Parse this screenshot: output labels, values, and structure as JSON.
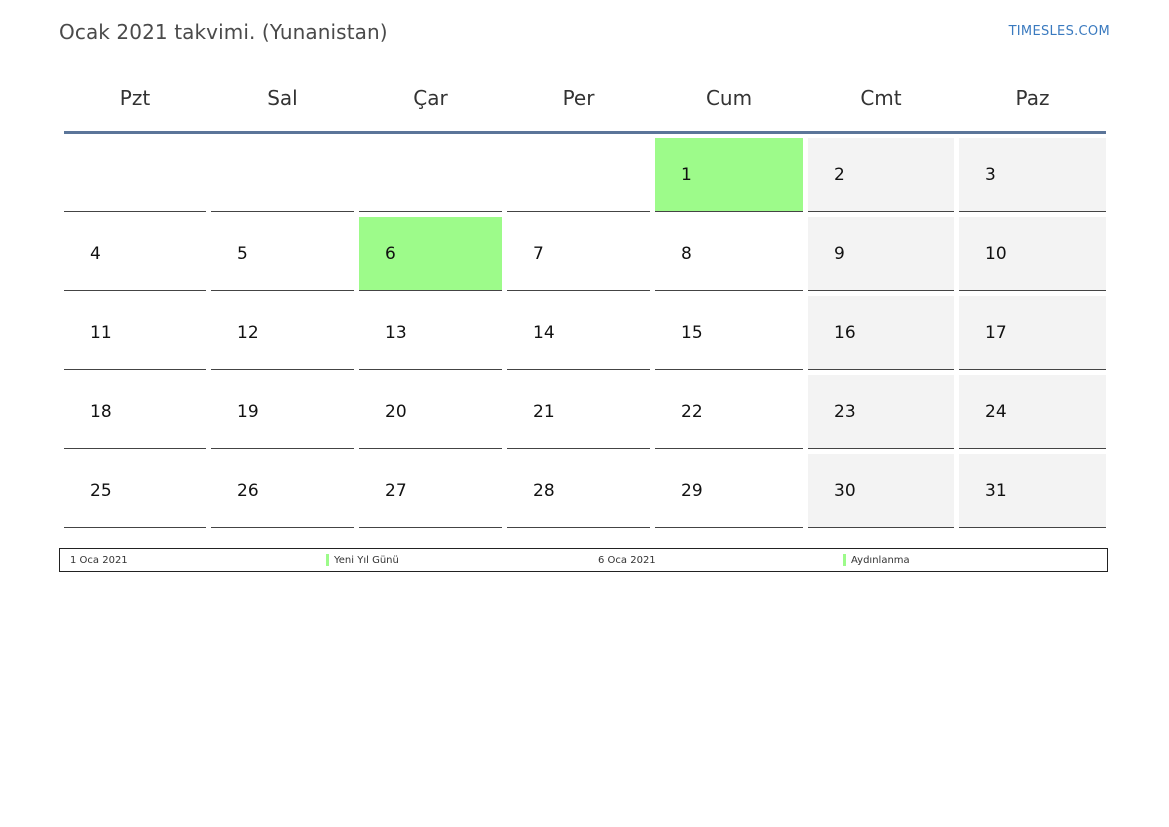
{
  "header": {
    "title": "Ocak 2021 takvimi. (Yunanistan)",
    "brand": "TIMESLES.COM"
  },
  "calendar": {
    "weekdays": [
      "Pzt",
      "Sal",
      "Çar",
      "Per",
      "Cum",
      "Cmt",
      "Paz"
    ],
    "weeks": [
      [
        "",
        "",
        "",
        "",
        "1",
        "2",
        "3"
      ],
      [
        "4",
        "5",
        "6",
        "7",
        "8",
        "9",
        "10"
      ],
      [
        "11",
        "12",
        "13",
        "14",
        "15",
        "16",
        "17"
      ],
      [
        "18",
        "19",
        "20",
        "21",
        "22",
        "23",
        "24"
      ],
      [
        "25",
        "26",
        "27",
        "28",
        "29",
        "30",
        "31"
      ]
    ],
    "holiday_days": [
      "1",
      "6"
    ],
    "colors": {
      "holiday": "#9dfb8a",
      "weekend": "#f3f3f3",
      "header_rule": "#5b7599"
    }
  },
  "legend": {
    "entries": [
      {
        "date": "1 Oca 2021",
        "name": "Yeni Yıl Günü"
      },
      {
        "date": "6 Oca 2021",
        "name": "Aydınlanma"
      }
    ]
  }
}
